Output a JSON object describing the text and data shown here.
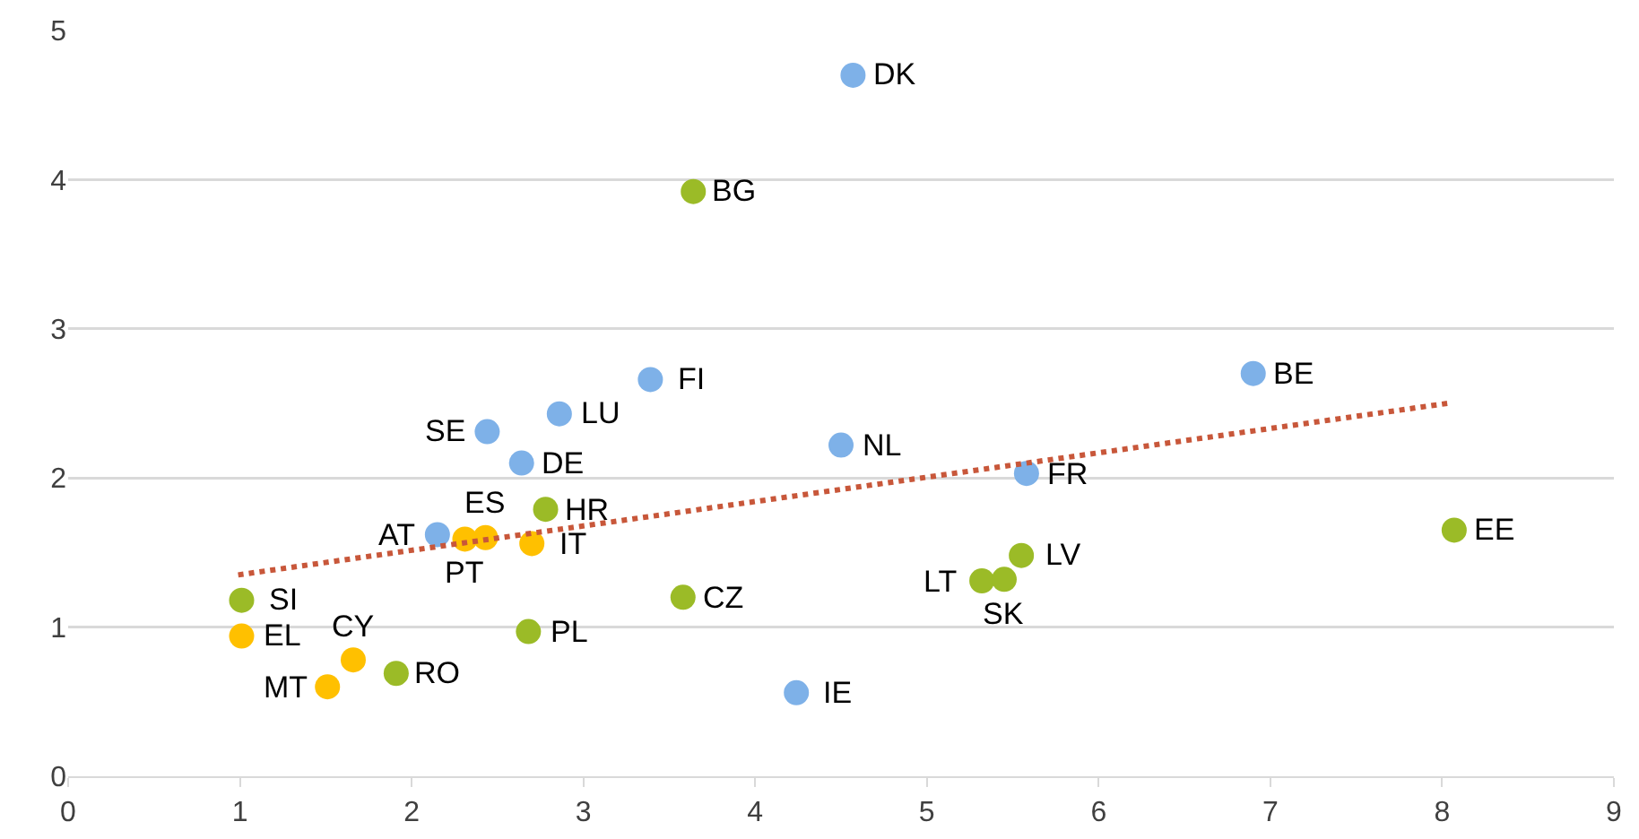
{
  "chart_data": {
    "type": "scatter",
    "xlim": [
      0,
      9
    ],
    "ylim": [
      0,
      5
    ],
    "xticks": [
      0,
      1,
      2,
      3,
      4,
      5,
      6,
      7,
      8,
      9
    ],
    "yticks": [
      0,
      1,
      2,
      3,
      4,
      5
    ],
    "grid": "y",
    "marker": "circle",
    "series": [
      {
        "color": "#7eb1e8",
        "x": [
          4.57,
          2.86,
          3.39,
          2.44,
          2.64,
          4.5,
          6.9,
          5.58,
          2.15,
          4.24
        ],
        "values": [
          4.7,
          2.43,
          2.66,
          2.31,
          2.1,
          2.22,
          2.7,
          2.03,
          1.62,
          0.56
        ]
      },
      {
        "color": "#9bbb27",
        "x": [
          3.64,
          2.78,
          3.58,
          2.68,
          1.01,
          1.91,
          5.32,
          5.45,
          5.55,
          8.07
        ],
        "values": [
          3.92,
          1.79,
          1.2,
          0.97,
          1.18,
          0.69,
          1.31,
          1.32,
          1.48,
          1.65
        ]
      },
      {
        "color": "#ffc000",
        "x": [
          2.43,
          2.31,
          2.7,
          1.01,
          1.66,
          1.51
        ],
        "values": [
          1.6,
          1.59,
          1.56,
          0.94,
          0.78,
          0.6
        ]
      },
      {
        "type": "line",
        "color": "#c8573a",
        "line_style": "dotted",
        "marker": "none",
        "x": [
          0.99,
          8.03
        ],
        "values": [
          1.35,
          2.5
        ]
      }
    ],
    "annotations": [
      {
        "text": "DK",
        "x": 4.57,
        "y": 4.7
      },
      {
        "text": "LU",
        "x": 2.86,
        "y": 2.43
      },
      {
        "text": "FI",
        "x": 3.39,
        "y": 2.66
      },
      {
        "text": "SE",
        "x": 2.44,
        "y": 2.31
      },
      {
        "text": "DE",
        "x": 2.64,
        "y": 2.1
      },
      {
        "text": "NL",
        "x": 4.5,
        "y": 2.22
      },
      {
        "text": "BE",
        "x": 6.9,
        "y": 2.7
      },
      {
        "text": "FR",
        "x": 5.58,
        "y": 2.03
      },
      {
        "text": "AT",
        "x": 2.15,
        "y": 1.62
      },
      {
        "text": "IE",
        "x": 4.24,
        "y": 0.56
      },
      {
        "text": "BG",
        "x": 3.64,
        "y": 3.92
      },
      {
        "text": "HR",
        "x": 2.78,
        "y": 1.79
      },
      {
        "text": "CZ",
        "x": 3.58,
        "y": 1.2
      },
      {
        "text": "PL",
        "x": 2.68,
        "y": 0.97
      },
      {
        "text": "SI",
        "x": 1.01,
        "y": 1.18
      },
      {
        "text": "RO",
        "x": 1.91,
        "y": 0.69
      },
      {
        "text": "LT",
        "x": 5.32,
        "y": 1.31
      },
      {
        "text": "SK",
        "x": 5.45,
        "y": 1.32
      },
      {
        "text": "LV",
        "x": 5.55,
        "y": 1.48
      },
      {
        "text": "EE",
        "x": 8.07,
        "y": 1.65
      },
      {
        "text": "ES",
        "x": 2.43,
        "y": 1.6
      },
      {
        "text": "PT",
        "x": 2.31,
        "y": 1.59
      },
      {
        "text": "IT",
        "x": 2.7,
        "y": 1.56
      },
      {
        "text": "EL",
        "x": 1.01,
        "y": 0.94
      },
      {
        "text": "CY",
        "x": 1.66,
        "y": 0.78
      },
      {
        "text": "MT",
        "x": 1.51,
        "y": 0.6
      }
    ]
  }
}
